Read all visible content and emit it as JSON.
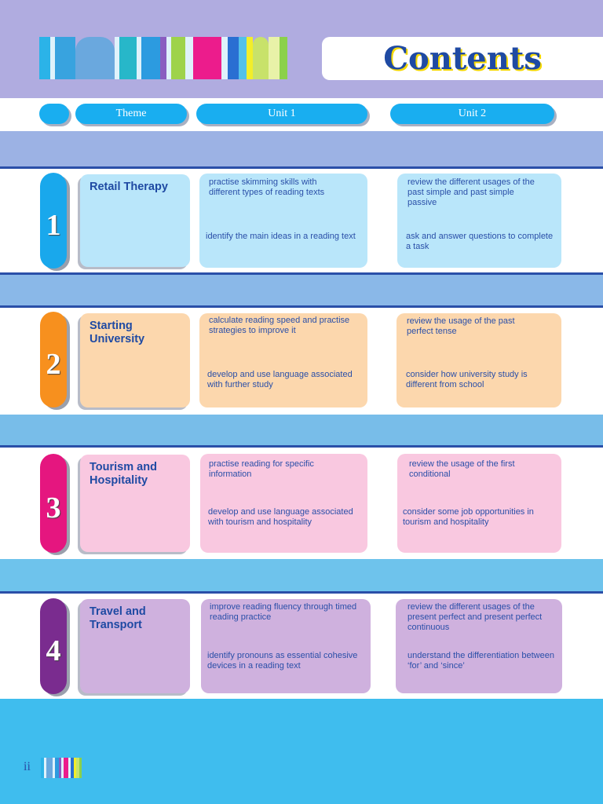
{
  "header": {
    "title": "Contents"
  },
  "columns": {
    "theme": "Theme",
    "unit1": "Unit 1",
    "unit2": "Unit 2"
  },
  "colors": {
    "unit1": "#19a8ec",
    "unit2": "#f7901e",
    "unit3": "#e5167f",
    "unit4": "#7a2c8f"
  },
  "units": [
    {
      "number": "1",
      "theme": "Retail Therapy",
      "unit1_a": "practise skimming skills with different types of reading texts",
      "unit1_b": "identify the main ideas in a reading text",
      "unit2_a": "review the different usages of the past simple and past simple passive",
      "unit2_b": "ask and answer questions to complete a task"
    },
    {
      "number": "2",
      "theme": "Starting University",
      "unit1_a": "calculate reading speed and practise strategies to improve it",
      "unit1_b": "develop and use language associated with further study",
      "unit2_a": "review the usage of the past perfect tense",
      "unit2_b": "consider how university study is different from school"
    },
    {
      "number": "3",
      "theme": "Tourism and Hospitality",
      "unit1_a": "practise reading for specific information",
      "unit1_b": "develop and use language associated with tourism and hospitality",
      "unit2_a": "review the usage of the first conditional",
      "unit2_b": "consider some job opportunities in tourism and hospitality"
    },
    {
      "number": "4",
      "theme": "Travel and Transport",
      "unit1_a": "improve reading fluency through timed reading practice",
      "unit1_b": "identify pronouns as essential cohesive devices in a reading text",
      "unit2_a": "review the different usages of the present perfect and present perfect continuous",
      "unit2_b": "understand the differentiation between ‘for’ and ‘since’"
    }
  ],
  "footer": {
    "page_number": "ii"
  }
}
